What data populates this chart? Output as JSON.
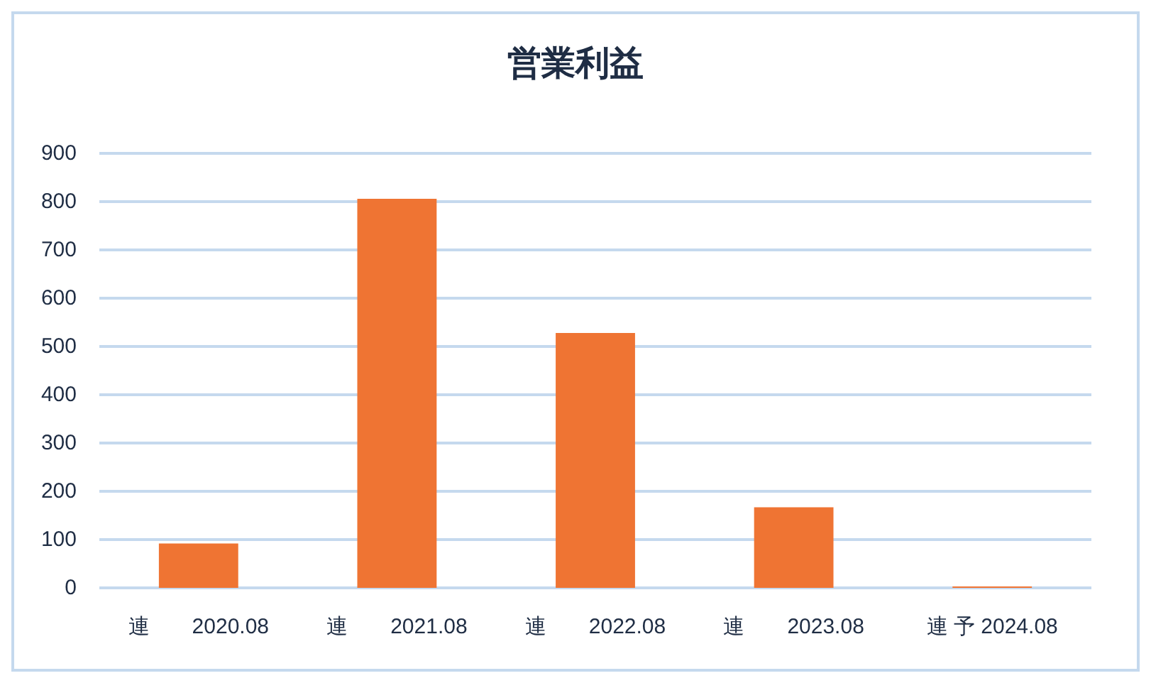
{
  "chart_data": {
    "type": "bar",
    "title": "営業利益",
    "categories": [
      "連　　2020.08",
      "連　　2021.08",
      "連　　2022.08",
      "連　　2023.08",
      "連 予 2024.08"
    ],
    "values": [
      92,
      806,
      528,
      167,
      3
    ],
    "color": "#ef7433",
    "ylim": [
      0,
      900
    ],
    "yticks": [
      0,
      100,
      200,
      300,
      400,
      500,
      600,
      700,
      800,
      900
    ],
    "grid": "y"
  }
}
